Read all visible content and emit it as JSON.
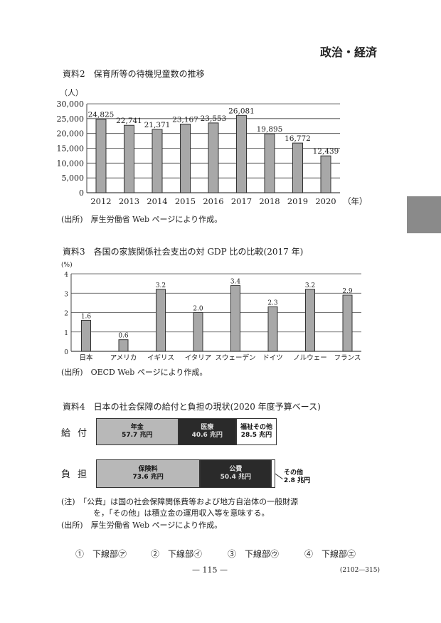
{
  "header": {
    "subject": "政治・経済"
  },
  "chart_data": [
    {
      "type": "bar",
      "title": "資料2　保育所等の待機児童数の推移",
      "ylabel": "（人）",
      "xlabel": "（年）",
      "categories": [
        "2012",
        "2013",
        "2014",
        "2015",
        "2016",
        "2017",
        "2018",
        "2019",
        "2020"
      ],
      "values": [
        24825,
        22741,
        21371,
        23167,
        23553,
        26081,
        19895,
        16772,
        12439
      ],
      "data_labels": [
        "24,825",
        "22,741",
        "21,371",
        "23,167",
        "23,553",
        "26,081",
        "19,895",
        "16,772",
        "12,439"
      ],
      "yticks": [
        "0",
        "5,000",
        "10,000",
        "15,000",
        "20,000",
        "25,000",
        "30,000"
      ],
      "ylim": [
        0,
        30000
      ],
      "grid": true,
      "source": "(出所)　厚生労働省 Web ページにより作成。"
    },
    {
      "type": "bar",
      "title": "資料3　各国の家族関係社会支出の対 GDP 比の比較(2017 年)",
      "ylabel": "(%)",
      "categories": [
        "日本",
        "アメリカ",
        "イギリス",
        "イタリア",
        "スウェーデン",
        "ドイツ",
        "ノルウェー",
        "フランス"
      ],
      "values": [
        1.6,
        0.6,
        3.2,
        2.0,
        3.4,
        2.3,
        3.2,
        2.9
      ],
      "data_labels": [
        "1.6",
        "0.6",
        "3.2",
        "2.0",
        "3.4",
        "2.3",
        "3.2",
        "2.9"
      ],
      "yticks": [
        "0",
        "1",
        "2",
        "3",
        "4"
      ],
      "ylim": [
        0,
        4
      ],
      "grid": true,
      "source": "(出所)　OECD Web ページにより作成。"
    },
    {
      "type": "bar",
      "stacked": true,
      "horizontal": true,
      "title": "資料4　日本の社会保障の給付と負担の現状(2020 年度予算ベース)",
      "rows": [
        {
          "label": "給付",
          "segments": [
            {
              "name": "年金",
              "value": 57.7,
              "value_label": "57.7 兆円",
              "color": "#b8b8b8"
            },
            {
              "name": "医療",
              "value": 40.6,
              "value_label": "40.6 兆円",
              "color": "#2a2a2a"
            },
            {
              "name": "福祉その他",
              "value": 28.5,
              "value_label": "28.5 兆円",
              "color": "#ffffff"
            }
          ]
        },
        {
          "label": "負担",
          "segments": [
            {
              "name": "保険料",
              "value": 73.6,
              "value_label": "73.6 兆円",
              "color": "#b8b8b8"
            },
            {
              "name": "公費",
              "value": 50.4,
              "value_label": "50.4 兆円",
              "color": "#2a2a2a"
            },
            {
              "name": "その他",
              "value": 2.8,
              "value_label": "2.8 兆円",
              "color": "#ffffff"
            }
          ]
        }
      ],
      "note_1": "(注)　「公費」は国の社会保障関係費等および地方自治体の一般財源",
      "note_2": "を，「その他」は積立金の運用収入等を意味する。",
      "source": "(出所)　厚生労働省 Web ページにより作成。"
    }
  ],
  "options": [
    {
      "num": "①",
      "label": "下線部㋐"
    },
    {
      "num": "②",
      "label": "下線部㋑"
    },
    {
      "num": "③",
      "label": "下線部㋒"
    },
    {
      "num": "④",
      "label": "下線部㋓"
    }
  ],
  "footer": {
    "page": "— 115 —",
    "code": "(2102—315)"
  }
}
